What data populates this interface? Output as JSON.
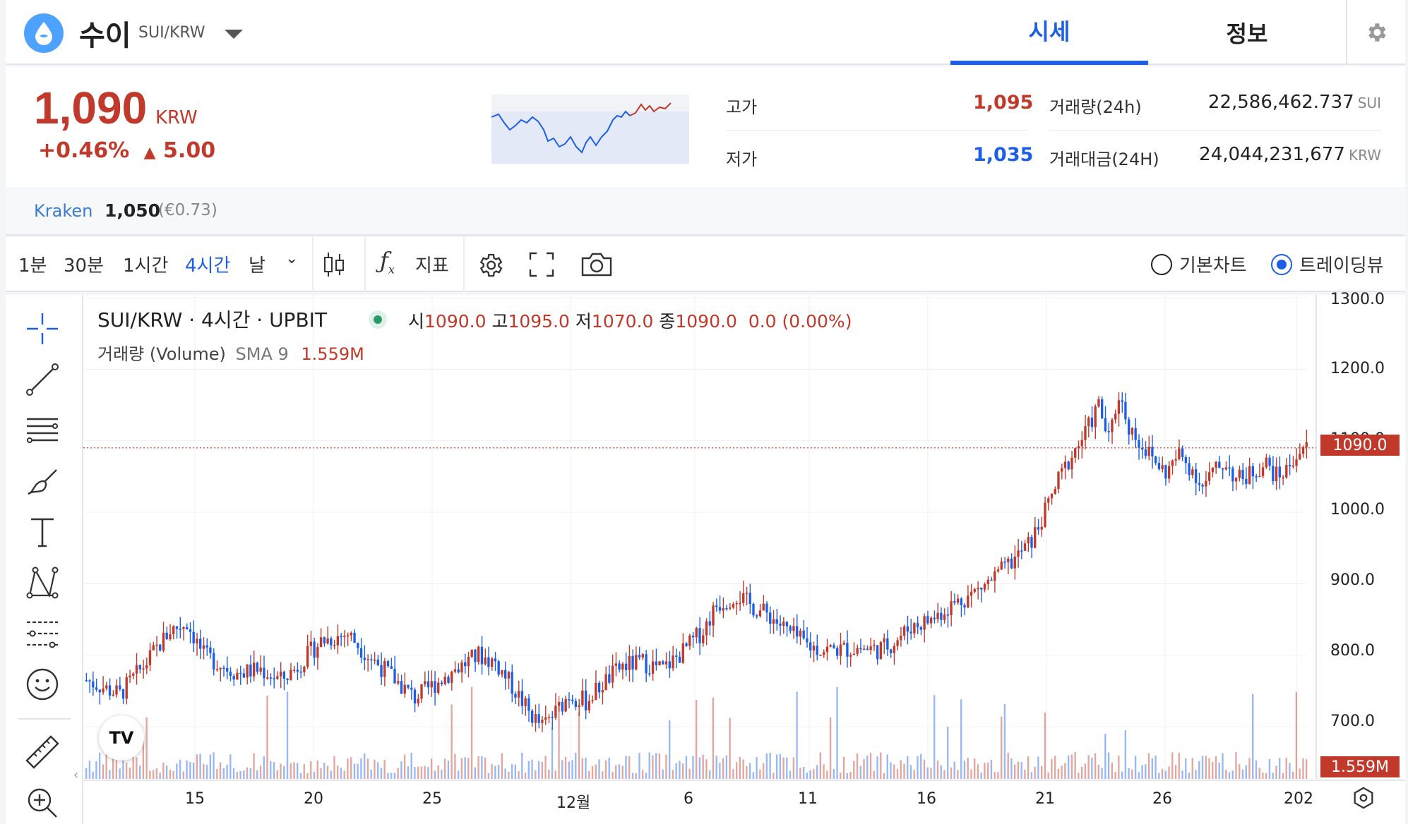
{
  "header": {
    "coin_name": "수이",
    "pair": "SUI/KRW",
    "tabs": [
      {
        "label": "시세",
        "active": true
      },
      {
        "label": "정보",
        "active": false
      }
    ],
    "accent_color": "#1c5fe6"
  },
  "price": {
    "current": "1,090",
    "unit": "KRW",
    "change_pct": "+0.46%",
    "change_abs": "5.00",
    "up_color": "#c0392b",
    "down_color": "#1c5fe6"
  },
  "stats": {
    "high_label": "고가",
    "high_value": "1,095",
    "low_label": "저가",
    "low_value": "1,035",
    "volume_label": "거래량(24h)",
    "volume_value": "22,586,462.737",
    "volume_unit": "SUI",
    "amount_label": "거래대금(24H)",
    "amount_value": "24,044,231,677",
    "amount_unit": "KRW"
  },
  "reference": {
    "exchange": "Kraken",
    "price": "1,050",
    "converted": "(€0.73)"
  },
  "toolbar": {
    "intervals": [
      "1분",
      "30분",
      "1시간",
      "4시간",
      "날"
    ],
    "active_interval": "4시간",
    "indicators_label": "지표",
    "chart_modes": [
      {
        "label": "기본차트",
        "selected": false
      },
      {
        "label": "트레이딩뷰",
        "selected": true
      }
    ]
  },
  "chart": {
    "symbol_line": "SUI/KRW · 4시간 · UPBIT",
    "ohlc": {
      "open_label": "시",
      "open": "1090.0",
      "high_label": "고",
      "high": "1095.0",
      "low_label": "저",
      "low": "1070.0",
      "close_label": "종",
      "close": "1090.0",
      "change": "0.0 (0.00%)"
    },
    "volume_legend": "거래량 (Volume)",
    "volume_sma": "SMA 9",
    "volume_value": "1.559M",
    "last_price_tag": "1090.0",
    "volume_tag": "1.559M",
    "logo_text": "TV"
  },
  "chart_data": {
    "type": "candlestick",
    "y_ticks": [
      "1300.0",
      "1200.0",
      "1100.0",
      "1000.0",
      "900.0",
      "800.0",
      "700.0"
    ],
    "ylim": [
      643,
      1300
    ],
    "x_ticks": [
      "15",
      "20",
      "25",
      "12월",
      "6",
      "11",
      "16",
      "21",
      "26",
      "202"
    ],
    "grid": true,
    "close_path": [
      [
        0,
        765
      ],
      [
        10,
        745
      ],
      [
        18,
        790
      ],
      [
        25,
        835
      ],
      [
        30,
        845
      ],
      [
        35,
        800
      ],
      [
        45,
        775
      ],
      [
        52,
        780
      ],
      [
        58,
        765
      ],
      [
        62,
        780
      ],
      [
        70,
        820
      ],
      [
        78,
        830
      ],
      [
        84,
        800
      ],
      [
        90,
        775
      ],
      [
        98,
        740
      ],
      [
        104,
        760
      ],
      [
        110,
        780
      ],
      [
        117,
        800
      ],
      [
        122,
        790
      ],
      [
        128,
        750
      ],
      [
        132,
        720
      ],
      [
        136,
        700
      ],
      [
        140,
        720
      ],
      [
        144,
        745
      ],
      [
        149,
        735
      ],
      [
        154,
        760
      ],
      [
        160,
        785
      ],
      [
        166,
        790
      ],
      [
        172,
        780
      ],
      [
        178,
        805
      ],
      [
        184,
        835
      ],
      [
        188,
        870
      ],
      [
        194,
        885
      ],
      [
        198,
        870
      ],
      [
        204,
        855
      ],
      [
        210,
        830
      ],
      [
        216,
        812
      ],
      [
        220,
        808
      ],
      [
        225,
        808
      ],
      [
        230,
        810
      ],
      [
        236,
        808
      ],
      [
        240,
        815
      ],
      [
        246,
        840
      ],
      [
        252,
        850
      ],
      [
        258,
        870
      ],
      [
        264,
        885
      ],
      [
        270,
        905
      ],
      [
        276,
        930
      ],
      [
        282,
        960
      ],
      [
        286,
        1000
      ],
      [
        290,
        1045
      ],
      [
        294,
        1080
      ],
      [
        298,
        1110
      ],
      [
        302,
        1150
      ],
      [
        305,
        1100
      ],
      [
        308,
        1165
      ],
      [
        311,
        1120
      ],
      [
        314,
        1100
      ],
      [
        318,
        1075
      ],
      [
        322,
        1055
      ],
      [
        326,
        1080
      ],
      [
        330,
        1060
      ],
      [
        333,
        1035
      ],
      [
        336,
        1055
      ],
      [
        340,
        1070
      ],
      [
        343,
        1045
      ],
      [
        346,
        1050
      ],
      [
        349,
        1060
      ],
      [
        352,
        1068
      ],
      [
        355,
        1050
      ],
      [
        358,
        1058
      ],
      [
        360,
        1075
      ],
      [
        363,
        1090
      ]
    ]
  }
}
